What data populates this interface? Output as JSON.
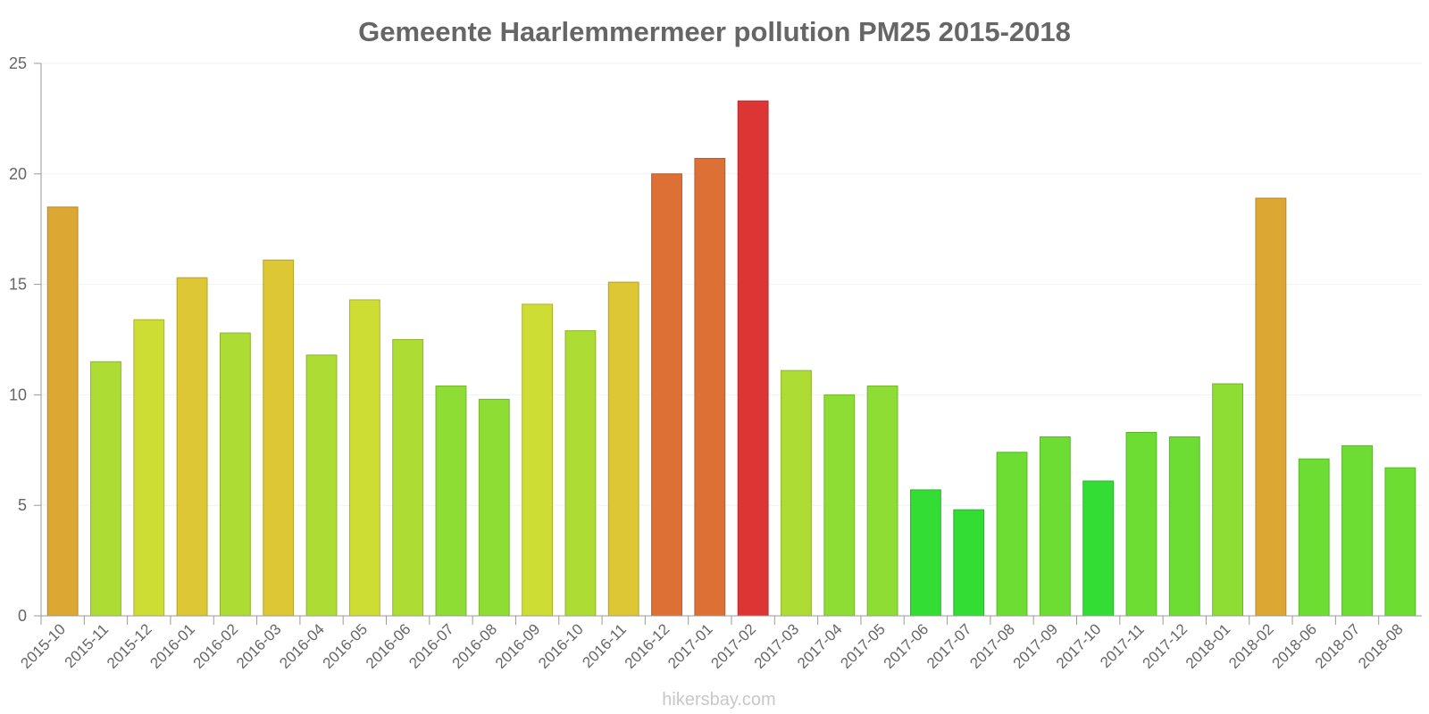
{
  "watermark": "hikersbay.com",
  "chart_data": {
    "type": "bar",
    "title": "Gemeente Haarlemmermeer pollution PM25 2015-2018",
    "xlabel": "",
    "ylabel": "",
    "ylim": [
      0,
      25
    ],
    "yticks": [
      0,
      5,
      10,
      15,
      20,
      25
    ],
    "grid": true,
    "categories": [
      "2015-10",
      "2015-11",
      "2015-12",
      "2016-01",
      "2016-02",
      "2016-03",
      "2016-04",
      "2016-05",
      "2016-06",
      "2016-07",
      "2016-08",
      "2016-09",
      "2016-10",
      "2016-11",
      "2016-12",
      "2017-01",
      "2017-02",
      "2017-03",
      "2017-04",
      "2017-05",
      "2017-06",
      "2017-07",
      "2017-08",
      "2017-09",
      "2017-10",
      "2017-11",
      "2017-12",
      "2018-01",
      "2018-02",
      "2018-06",
      "2018-07",
      "2018-08"
    ],
    "values": [
      18.5,
      11.5,
      13.4,
      15.3,
      12.8,
      16.1,
      11.8,
      14.3,
      12.5,
      10.4,
      9.8,
      14.1,
      12.9,
      15.1,
      20.0,
      20.7,
      23.3,
      11.1,
      10.0,
      10.4,
      5.7,
      4.8,
      7.4,
      8.1,
      6.1,
      8.3,
      8.1,
      10.5,
      18.9,
      7.1,
      7.7,
      6.7
    ],
    "colors": [
      "#dda734",
      "#addd34",
      "#cddd34",
      "#ddc734",
      "#addd34",
      "#ddc734",
      "#addd34",
      "#cddd34",
      "#addd34",
      "#8ddd34",
      "#8ddd34",
      "#cddd34",
      "#addd34",
      "#ddc734",
      "#dd7034",
      "#dd7034",
      "#dd3434",
      "#addd34",
      "#8ddd34",
      "#8ddd34",
      "#34dd34",
      "#34dd34",
      "#6ddd34",
      "#6ddd34",
      "#34dd34",
      "#6ddd34",
      "#6ddd34",
      "#8ddd34",
      "#dda734",
      "#6ddd34",
      "#6ddd34",
      "#6ddd34"
    ]
  }
}
